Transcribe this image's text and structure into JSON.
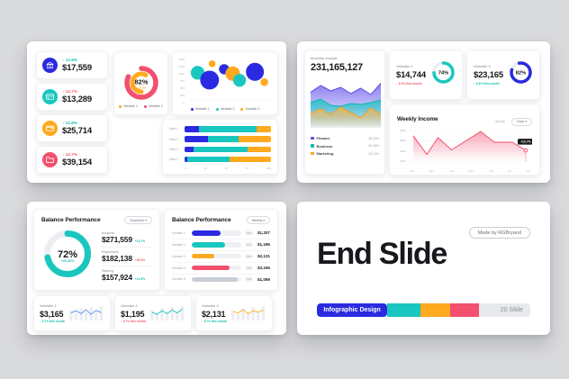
{
  "slide1": {
    "cards": [
      {
        "icon": "bank-icon",
        "trend": "↑ 13.8%",
        "dir": "up",
        "value": "$17,559",
        "color": "#2b2ae0"
      },
      {
        "icon": "credit-card-icon",
        "trend": "↓ 14.7%",
        "dir": "down",
        "value": "$13,289",
        "color": "#19c7bf"
      },
      {
        "icon": "wallet-icon",
        "trend": "↑ 13.8%",
        "dir": "up",
        "value": "$25,714",
        "color": "#ffa91f"
      },
      {
        "icon": "folder-icon",
        "trend": "↓ 14.7%",
        "dir": "down",
        "value": "$39,154",
        "color": "#f2506e"
      }
    ]
  },
  "slide2": {
    "insight_label": "Monthly Insight",
    "insight_value": "231,165,127",
    "stat1": {
      "label": "Variable 1",
      "value": "$14,744",
      "trend": "↓ 5.2% this month",
      "dir": "down"
    },
    "stat2": {
      "label": "Variable 2",
      "value": "$23,165",
      "trend": "↑ 5.2% this month",
      "dir": "up"
    },
    "weekly": {
      "title": "Weekly Income",
      "sort_by": "Sort by",
      "sort_value": "Days ▾"
    }
  },
  "slide3": {
    "perf1": {
      "title": "Balance Performance",
      "dropdown": "December ▾",
      "stats": [
        {
          "label": "Income",
          "value": "$271,559",
          "trend": "+14.7%",
          "dir": "up"
        },
        {
          "label": "Expenses",
          "value": "$182,138",
          "trend": "+25.3%",
          "dir": "down"
        },
        {
          "label": "Saving",
          "value": "$157,924",
          "trend": "+14.9%",
          "dir": "up"
        }
      ]
    },
    "perf2": {
      "title": "Balance Performance",
      "dropdown": "Weekly ▾"
    },
    "minis": [
      {
        "label": "Variable 1",
        "value": "$3,165",
        "trend": "↑ 5.7% this month",
        "dir": "up"
      },
      {
        "label": "Variable 2",
        "value": "$1,195",
        "trend": "↓ 5.7% this month",
        "dir": "down"
      },
      {
        "label": "Variable 3",
        "value": "$2,131",
        "trend": "↑ 5.7% this month",
        "dir": "up"
      }
    ]
  },
  "slide4": {
    "title": "End Slide",
    "badge": "Made by RGBryand",
    "label": "Infographic Design",
    "count": "20 Slide",
    "segments": [
      {
        "color": "#2b2ae0",
        "w": 33
      },
      {
        "color": "#19c7bf",
        "w": 15.5
      },
      {
        "color": "#ffa91f",
        "w": 14
      },
      {
        "color": "#f2506e",
        "w": 13.5
      },
      {
        "color": "#e8e9ec",
        "w": 24
      }
    ]
  },
  "chart_data": [
    {
      "id": "s1-donut",
      "type": "pie",
      "center_label": "82%",
      "sub_label": "+12.5%",
      "series": [
        {
          "name": "Variable 1",
          "value": 58,
          "color": "#ffa91f"
        },
        {
          "name": "Variable 2",
          "value": 82,
          "color": "#f2506e"
        }
      ]
    },
    {
      "id": "s1-bubble",
      "type": "scatter",
      "ylim": [
        0,
        1500
      ],
      "y_ticks": [
        "1500",
        "1250",
        "1000",
        "750",
        "500",
        "250",
        "0"
      ],
      "legend": [
        {
          "name": "Variable 1",
          "color": "#2b2ae0"
        },
        {
          "name": "Variable 2",
          "color": "#19c7bf"
        },
        {
          "name": "Variable 3",
          "color": "#ffa91f"
        }
      ],
      "points": [
        {
          "x": 10,
          "y": 980,
          "r": 8,
          "color": "#19c7bf"
        },
        {
          "x": 24,
          "y": 700,
          "r": 11,
          "color": "#2b2ae0"
        },
        {
          "x": 27,
          "y": 1330,
          "r": 4,
          "color": "#ffa91f"
        },
        {
          "x": 41,
          "y": 1120,
          "r": 6,
          "color": "#2b2ae0"
        },
        {
          "x": 51,
          "y": 950,
          "r": 8.5,
          "color": "#ffa91f"
        },
        {
          "x": 59,
          "y": 690,
          "r": 7.5,
          "color": "#19c7bf"
        },
        {
          "x": 77,
          "y": 1020,
          "r": 10.5,
          "color": "#2b2ae0"
        },
        {
          "x": 88,
          "y": 620,
          "r": 4.5,
          "color": "#ffa91f"
        }
      ]
    },
    {
      "id": "s1-stacked",
      "type": "bar",
      "categories": [
        "Data 1",
        "Data 2",
        "Data 3",
        "Data 4"
      ],
      "x_ticks": [
        "0",
        "25",
        "50",
        "75",
        "100"
      ],
      "xlim": [
        0,
        100
      ],
      "series": [
        {
          "name": "Variable 1",
          "color": "#2b2ae0",
          "values": [
            17,
            27,
            10,
            3
          ]
        },
        {
          "name": "Variable 2",
          "color": "#19c7bf",
          "values": [
            66,
            36,
            63,
            49
          ]
        },
        {
          "name": "Variable 3",
          "color": "#ffa91f",
          "values": [
            17,
            37,
            27,
            48
          ]
        }
      ]
    },
    {
      "id": "s2-area",
      "type": "area",
      "ylim": [
        0,
        100
      ],
      "series": [
        {
          "name": "Finance",
          "share": "38,20%",
          "color": "#7668ee",
          "line": "#5a4ae8",
          "values": [
            75,
            90,
            78,
            86,
            72,
            84,
            70,
            95
          ]
        },
        {
          "name": "Business",
          "share": "25,45%",
          "color": "#19c7bf",
          "line": "#0fb5ad",
          "values": [
            52,
            60,
            46,
            44,
            50,
            48,
            52,
            58
          ]
        },
        {
          "name": "Marketing",
          "share": "33,19%",
          "color": "#ffb64a",
          "line": "#ff9f1a",
          "values": [
            28,
            38,
            25,
            42,
            30,
            18,
            40,
            25
          ]
        }
      ]
    },
    {
      "id": "s2-gauge-1",
      "type": "gauge",
      "value": 74,
      "label": "74%",
      "color": "#19c7bf",
      "rot": -90
    },
    {
      "id": "s2-gauge-2",
      "type": "gauge",
      "value": 82,
      "label": "82%",
      "color": "#2b2ae0",
      "rot": -100
    },
    {
      "id": "s2-weekly",
      "type": "line",
      "title": "Weekly Income",
      "color": "#f2506e",
      "ylim": [
        200,
        800
      ],
      "y_ticks": [
        "$800",
        "$600",
        "$400",
        "$200"
      ],
      "x_ticks": [
        "Sun",
        "Mon",
        "Tue",
        "Wed",
        "Thu",
        "Fri",
        "Sat"
      ],
      "points": [
        [
          0,
          700
        ],
        [
          0.6,
          330
        ],
        [
          1.1,
          660
        ],
        [
          1.7,
          420
        ],
        [
          3,
          780
        ],
        [
          3.6,
          570
        ],
        [
          4.4,
          570
        ],
        [
          5,
          410
        ]
      ],
      "marker": [
        5,
        410
      ],
      "tooltip": "+12.7%"
    },
    {
      "id": "s3-donut",
      "type": "gauge",
      "value": 72,
      "label": "72%",
      "sub": "+25.32%",
      "color": "#19c7bf",
      "rot": -90
    },
    {
      "id": "s3-hbars",
      "type": "bar",
      "xlim": [
        0,
        100
      ],
      "rows": [
        {
          "label": "Variable 1",
          "pct": 58,
          "badge": "58%",
          "value": "$1,207",
          "color": "#2b2ae0"
        },
        {
          "label": "Variable 2",
          "pct": 67,
          "badge": "67%",
          "value": "$1,195",
          "color": "#19c7bf"
        },
        {
          "label": "Variable 3",
          "pct": 46,
          "badge": "46%",
          "value": "$2,131",
          "color": "#ffa91f"
        },
        {
          "label": "Variable 4",
          "pct": 75,
          "badge": "75%",
          "value": "$3,165",
          "color": "#f2506e"
        },
        {
          "label": "Variable 5",
          "pct": 92,
          "badge": "92%",
          "value": "$1,059",
          "color": "#c9cdd4"
        }
      ]
    },
    {
      "id": "s3-spark-1",
      "type": "sparkline",
      "bars": [
        55,
        38,
        68,
        45,
        75,
        50,
        80
      ],
      "line": [
        40,
        55,
        35,
        62,
        30,
        58,
        42
      ],
      "color": "#5a8df0"
    },
    {
      "id": "s3-spark-2",
      "type": "sparkline",
      "bars": [
        55,
        38,
        68,
        45,
        75,
        50,
        80
      ],
      "line": [
        45,
        30,
        55,
        35,
        60,
        40,
        66
      ],
      "color": "#19c7bf"
    },
    {
      "id": "s3-spark-3",
      "type": "sparkline",
      "bars": [
        55,
        38,
        68,
        45,
        75,
        50,
        80
      ],
      "line": [
        50,
        40,
        62,
        35,
        55,
        45,
        60
      ],
      "color": "#ffb01e"
    }
  ]
}
